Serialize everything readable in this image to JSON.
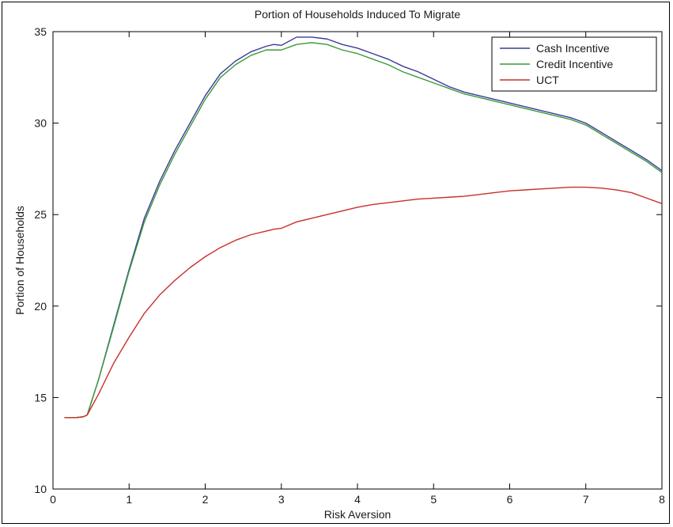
{
  "chart_data": {
    "type": "line",
    "title": "Portion of Households Induced To Migrate",
    "xlabel": "Risk Aversion",
    "ylabel": "Portion of Households",
    "xlim": [
      0,
      8
    ],
    "ylim": [
      10,
      35
    ],
    "xticks": [
      "0",
      "1",
      "2",
      "3",
      "4",
      "5",
      "6",
      "7",
      "8"
    ],
    "yticks": [
      "10",
      "15",
      "20",
      "25",
      "30",
      "35"
    ],
    "grid": false,
    "legend_position": "top-right",
    "series": [
      {
        "name": "Cash Incentive",
        "color": "#3b3b9a",
        "x": [
          0.15,
          0.3,
          0.4,
          0.45,
          0.6,
          0.8,
          1.0,
          1.2,
          1.4,
          1.6,
          1.8,
          2.0,
          2.2,
          2.4,
          2.6,
          2.8,
          2.9,
          3.0,
          3.2,
          3.4,
          3.6,
          3.8,
          4.0,
          4.2,
          4.4,
          4.6,
          4.8,
          5.0,
          5.2,
          5.4,
          5.6,
          5.8,
          6.0,
          6.2,
          6.4,
          6.6,
          6.8,
          7.0,
          7.2,
          7.4,
          7.6,
          7.8,
          8.0
        ],
        "y": [
          13.9,
          13.9,
          13.95,
          14.05,
          16.0,
          19.0,
          22.0,
          24.8,
          26.8,
          28.5,
          30.0,
          31.5,
          32.7,
          33.4,
          33.9,
          34.2,
          34.3,
          34.25,
          34.7,
          34.7,
          34.6,
          34.3,
          34.1,
          33.8,
          33.5,
          33.1,
          32.8,
          32.4,
          32.0,
          31.7,
          31.5,
          31.3,
          31.1,
          30.9,
          30.7,
          30.5,
          30.3,
          30.0,
          29.5,
          29.0,
          28.5,
          28.0,
          27.4
        ]
      },
      {
        "name": "Credit Incentive",
        "color": "#3a9a3a",
        "x": [
          0.15,
          0.3,
          0.4,
          0.45,
          0.6,
          0.8,
          1.0,
          1.2,
          1.4,
          1.6,
          1.8,
          2.0,
          2.2,
          2.4,
          2.6,
          2.8,
          2.9,
          3.0,
          3.2,
          3.4,
          3.6,
          3.8,
          4.0,
          4.2,
          4.4,
          4.6,
          4.8,
          5.0,
          5.2,
          5.4,
          5.6,
          5.8,
          6.0,
          6.2,
          6.4,
          6.6,
          6.8,
          7.0,
          7.2,
          7.4,
          7.6,
          7.8,
          8.0
        ],
        "y": [
          13.9,
          13.9,
          13.95,
          14.05,
          16.0,
          18.9,
          21.9,
          24.6,
          26.6,
          28.3,
          29.8,
          31.3,
          32.5,
          33.2,
          33.7,
          34.0,
          34.0,
          34.0,
          34.3,
          34.4,
          34.3,
          34.0,
          33.8,
          33.5,
          33.2,
          32.8,
          32.5,
          32.2,
          31.9,
          31.6,
          31.4,
          31.2,
          31.0,
          30.8,
          30.6,
          30.4,
          30.2,
          29.9,
          29.4,
          28.9,
          28.4,
          27.9,
          27.3
        ]
      },
      {
        "name": "UCT",
        "color": "#c8302a",
        "x": [
          0.15,
          0.3,
          0.4,
          0.45,
          0.6,
          0.8,
          1.0,
          1.2,
          1.4,
          1.6,
          1.8,
          2.0,
          2.2,
          2.4,
          2.6,
          2.8,
          2.9,
          3.0,
          3.2,
          3.4,
          3.6,
          3.8,
          4.0,
          4.2,
          4.4,
          4.6,
          4.8,
          5.0,
          5.2,
          5.4,
          5.6,
          5.8,
          6.0,
          6.2,
          6.4,
          6.6,
          6.8,
          7.0,
          7.2,
          7.4,
          7.6,
          7.8,
          8.0
        ],
        "y": [
          13.9,
          13.9,
          13.95,
          14.05,
          15.2,
          16.9,
          18.3,
          19.6,
          20.6,
          21.4,
          22.1,
          22.7,
          23.2,
          23.6,
          23.9,
          24.1,
          24.2,
          24.25,
          24.6,
          24.8,
          25.0,
          25.2,
          25.4,
          25.55,
          25.65,
          25.75,
          25.85,
          25.9,
          25.95,
          26.0,
          26.1,
          26.2,
          26.3,
          26.35,
          26.4,
          26.45,
          26.5,
          26.5,
          26.45,
          26.35,
          26.2,
          25.9,
          25.6
        ]
      }
    ]
  }
}
